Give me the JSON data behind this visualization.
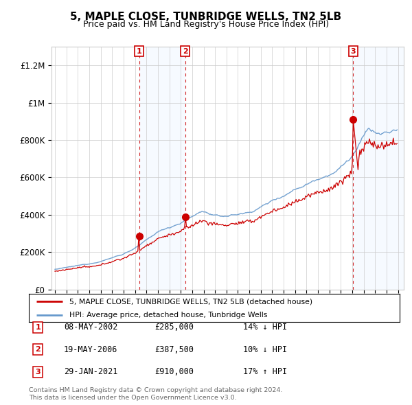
{
  "title": "5, MAPLE CLOSE, TUNBRIDGE WELLS, TN2 5LB",
  "subtitle": "Price paid vs. HM Land Registry's House Price Index (HPI)",
  "ylim": [
    0,
    1300000
  ],
  "yticks": [
    0,
    200000,
    400000,
    600000,
    800000,
    1000000,
    1200000
  ],
  "ytick_labels": [
    "£0",
    "£200K",
    "£400K",
    "£600K",
    "£800K",
    "£1M",
    "£1.2M"
  ],
  "sale1_date": 2002.36,
  "sale1_price": 285000,
  "sale1_label": "1",
  "sale1_text": "08-MAY-2002",
  "sale1_price_str": "£285,000",
  "sale1_pct": "14% ↓ HPI",
  "sale2_date": 2006.38,
  "sale2_price": 387500,
  "sale2_label": "2",
  "sale2_text": "19-MAY-2006",
  "sale2_price_str": "£387,500",
  "sale2_pct": "10% ↓ HPI",
  "sale3_date": 2021.08,
  "sale3_price": 910000,
  "sale3_label": "3",
  "sale3_text": "29-JAN-2021",
  "sale3_price_str": "£910,000",
  "sale3_pct": "17% ↑ HPI",
  "red_color": "#cc0000",
  "blue_color": "#6699cc",
  "shade_color": "#ddeeff",
  "grid_color": "#cccccc",
  "legend_line1": "5, MAPLE CLOSE, TUNBRIDGE WELLS, TN2 5LB (detached house)",
  "legend_line2": "HPI: Average price, detached house, Tunbridge Wells",
  "footer1": "Contains HM Land Registry data © Crown copyright and database right 2024.",
  "footer2": "This data is licensed under the Open Government Licence v3.0."
}
